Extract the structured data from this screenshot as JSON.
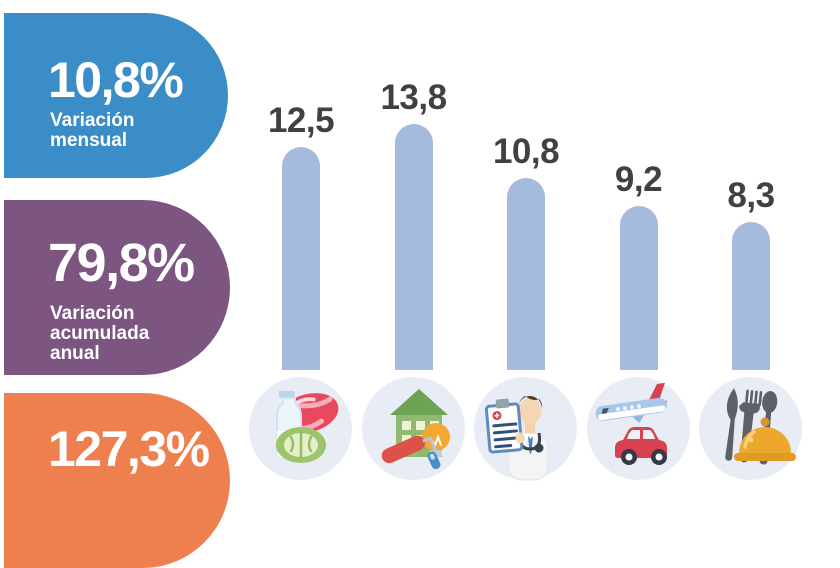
{
  "panels": [
    {
      "value": "10,8%",
      "label": "Variación\nmensual",
      "color": "#3a8dc7"
    },
    {
      "value": "79,8%",
      "label": "Variación\nacumulada\nanual",
      "color": "#7c5680"
    },
    {
      "value": "127,3%",
      "label": "",
      "color": "#ee7f4e"
    }
  ],
  "chart_data": {
    "type": "bar",
    "categories": [
      "food",
      "housing",
      "health",
      "transport",
      "restaurants"
    ],
    "values": [
      12.5,
      13.8,
      10.8,
      9.2,
      8.3
    ],
    "value_labels": [
      "12,5",
      "13,8",
      "10,8",
      "9,2",
      "8,3"
    ],
    "bar_color": "#a4bbde",
    "value_label_color": "#414141",
    "ylim": [
      0,
      14
    ],
    "grid": false,
    "legend": false,
    "icons": [
      "food-icon",
      "housing-icon",
      "health-icon",
      "transport-icon",
      "restaurant-icon"
    ],
    "icon_circle_color": "#e8ecf5"
  }
}
